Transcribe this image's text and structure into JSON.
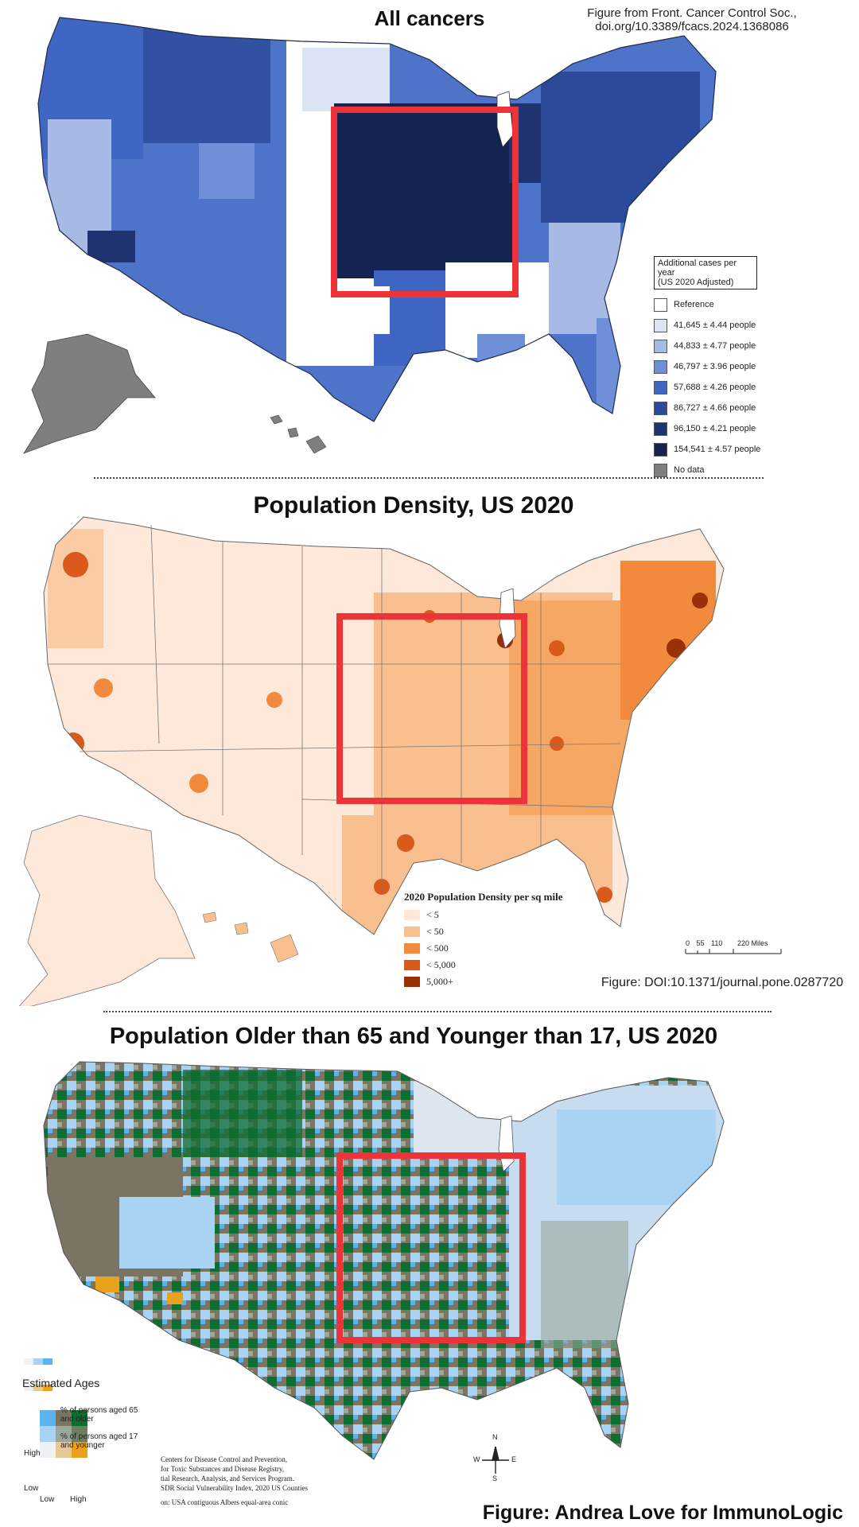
{
  "panel1": {
    "title": "All cancers",
    "credit_line1": "Figure from Front. Cancer Control Soc.,",
    "credit_line2": "doi.org/10.3389/fcacs.2024.1368086",
    "legend_title_line1": "Additional cases per year",
    "legend_title_line2": "(US 2020 Adjusted)",
    "legend": [
      {
        "label": "Reference",
        "color": "#ffffff"
      },
      {
        "label": "41,645 ± 4.44 people",
        "color": "#dbe3f5"
      },
      {
        "label": "44,833 ± 4.77 people",
        "color": "#a7bae6"
      },
      {
        "label": "46,797 ± 3.96 people",
        "color": "#6f8fd8"
      },
      {
        "label": "57,688 ± 4.26 people",
        "color": "#3f66c2"
      },
      {
        "label": "86,727 ± 4.66 people",
        "color": "#2b4a9a"
      },
      {
        "label": "96,150 ± 4.21 people",
        "color": "#1e3370"
      },
      {
        "label": "154,541 ± 4.57 people",
        "color": "#142350"
      },
      {
        "label": "No data",
        "color": "#7f7f7f"
      }
    ]
  },
  "panel2": {
    "title": "Population Density, US 2020",
    "credit": "Figure: DOI:10.1371/journal.pone.0287720",
    "legend_title": "2020 Population Density per sq mile",
    "legend": [
      {
        "label": "< 5",
        "color": "#fde8da"
      },
      {
        "label": "< 50",
        "color": "#f9bf8e"
      },
      {
        "label": "< 500",
        "color": "#f28a3e"
      },
      {
        "label": "< 5,000",
        "color": "#d95a1a"
      },
      {
        "label": "5,000+",
        "color": "#9a3008"
      }
    ],
    "scale_ticks": [
      "0",
      "55",
      "110",
      "220 Miles"
    ]
  },
  "panel3": {
    "title": "Population Older than 65 and Younger than 17, US 2020",
    "legend_title": "Estimated Ages",
    "legend_65": "% of persons aged 65 and older",
    "legend_17": "% of persons aged 17 and younger",
    "axis_high": "High",
    "axis_low": "Low",
    "axis_x_low": "Low",
    "axis_x_high": "High",
    "source_lines": [
      "Centers for Disease Control and Prevention,",
      "for Toxic Substances and Disease Registry,",
      "tial Research, Analysis, and Services Program.",
      "SDR Social Vulnerability Index, 2020 US Counties"
    ],
    "projection": "on: USA contiguous Albers equal-area conic",
    "compass": {
      "n": "N",
      "s": "S",
      "e": "E",
      "w": "W"
    },
    "colors": {
      "green": "#0d6e31",
      "olive": "#7b7462",
      "lightblue": "#a9d3f3",
      "blue": "#59b4ef",
      "gray": "#9aa89c",
      "orange": "#e9a21b",
      "tan": "#e6c795",
      "pale": "#dde6ee"
    }
  },
  "footer": "Figure: Andrea Love for ImmunoLogic",
  "highlight_color": "#ee3338"
}
